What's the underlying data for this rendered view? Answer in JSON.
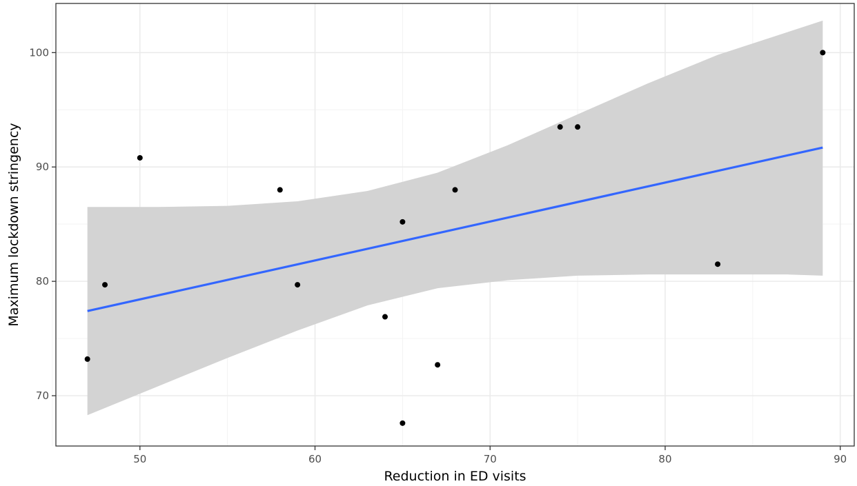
{
  "chart_data": {
    "type": "scatter",
    "title": "",
    "xlabel": "Reduction in ED visits",
    "ylabel": "Maximum lockdown stringency",
    "xlim": [
      45.2,
      90.8
    ],
    "ylim": [
      65.6,
      104.3
    ],
    "x_ticks": [
      50,
      60,
      70,
      80,
      90
    ],
    "y_ticks": [
      70,
      80,
      90,
      100
    ],
    "x_minor_ticks": [
      45,
      55,
      65,
      75,
      85
    ],
    "y_minor_ticks": [
      75,
      85,
      95
    ],
    "grid": true,
    "points": [
      {
        "x": 47,
        "y": 73.2
      },
      {
        "x": 48,
        "y": 79.7
      },
      {
        "x": 50,
        "y": 90.8
      },
      {
        "x": 58,
        "y": 88.0
      },
      {
        "x": 59,
        "y": 79.7
      },
      {
        "x": 64,
        "y": 76.9
      },
      {
        "x": 65,
        "y": 85.2
      },
      {
        "x": 65,
        "y": 67.6
      },
      {
        "x": 67,
        "y": 72.7
      },
      {
        "x": 68,
        "y": 88.0
      },
      {
        "x": 74,
        "y": 93.5
      },
      {
        "x": 75,
        "y": 93.5
      },
      {
        "x": 83,
        "y": 81.5
      },
      {
        "x": 89,
        "y": 100.0
      }
    ],
    "fit_line": {
      "x": [
        47,
        89
      ],
      "y": [
        77.4,
        91.7
      ]
    },
    "confidence_band": {
      "x": [
        47,
        51,
        55,
        59,
        63,
        67,
        71,
        75,
        79,
        83,
        87,
        89
      ],
      "lower": [
        68.3,
        70.8,
        73.3,
        75.7,
        77.9,
        79.4,
        80.1,
        80.5,
        80.6,
        80.6,
        80.6,
        80.5
      ],
      "upper": [
        86.5,
        86.5,
        86.6,
        87.0,
        87.9,
        89.5,
        91.9,
        94.6,
        97.3,
        99.8,
        101.8,
        102.8
      ]
    },
    "colors": {
      "points": "#000000",
      "fit_line": "#3366ff",
      "band": "#d3d3d3",
      "grid_major": "#ebebeb",
      "grid_minor": "#f3f3f3",
      "panel_border": "#333333"
    }
  }
}
